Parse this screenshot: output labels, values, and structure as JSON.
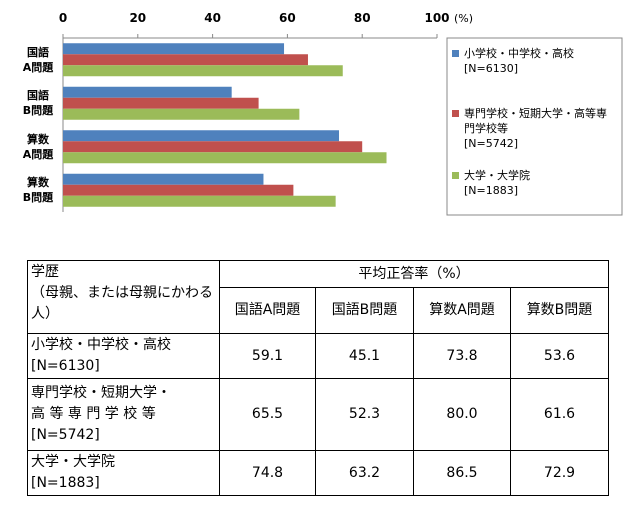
{
  "chart_data": {
    "type": "hbar",
    "xlabel": "(%)",
    "categories": [
      "国語\nA問題",
      "国語\nB問題",
      "算数\nA問題",
      "算数\nB問題"
    ],
    "series": [
      {
        "name": "小学校・中学校・高校\n[N=6130]",
        "color": "#4f81bd",
        "values": [
          59.1,
          45.1,
          73.8,
          53.6
        ]
      },
      {
        "name": "専門学校・短期大学・高等専\n門学校等\n[N=5742]",
        "color": "#c0504d",
        "values": [
          65.5,
          52.3,
          80.0,
          61.6
        ]
      },
      {
        "name": "大学・大学院\n[N=1883]",
        "color": "#9bbb59",
        "values": [
          74.8,
          63.2,
          86.5,
          72.9
        ]
      }
    ],
    "xlim": [
      0,
      100
    ],
    "xticks": [
      0,
      20,
      40,
      60,
      80,
      100
    ],
    "legend": "right"
  },
  "table": {
    "header": [
      "学歴\n（母親、または母親にかわる人）",
      "平均正答率（%）"
    ],
    "subheader": [
      "国語A問題",
      "国語B問題",
      "算数A問題",
      "算数B問題"
    ],
    "rows": [
      [
        "小学校・中学校・高校\n[N=6130]",
        "59.1",
        "45.1",
        "73.8",
        "53.6"
      ],
      [
        "専門学校・短期大学・\n高 等 専 門 学 校 等\n[N=5742]",
        "65.5",
        "52.3",
        "80.0",
        "61.6"
      ],
      [
        "大学・大学院\n[N=1883]",
        "74.8",
        "63.2",
        "86.5",
        "72.9"
      ]
    ]
  }
}
